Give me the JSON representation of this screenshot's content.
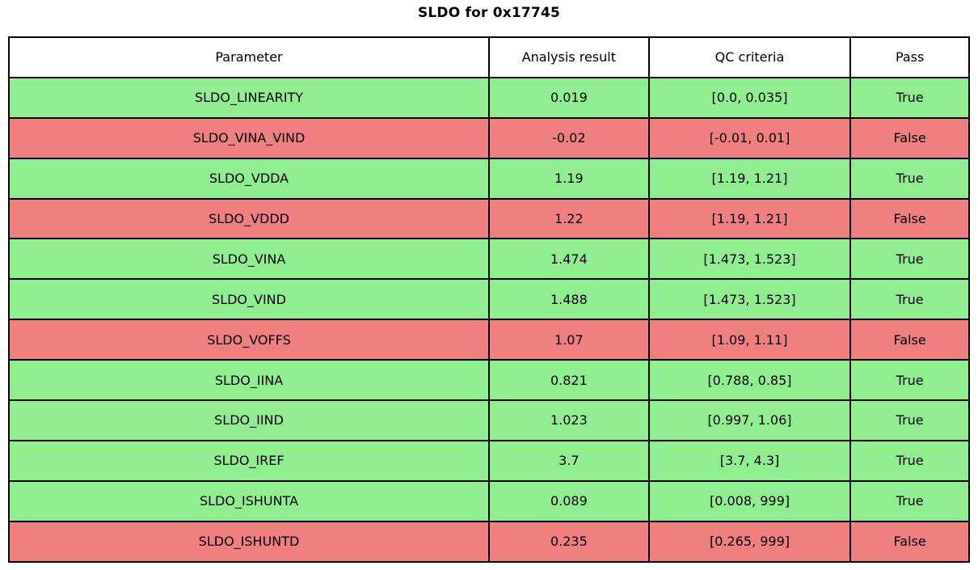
{
  "chart_data": {
    "type": "table",
    "title": "SLDO for 0x17745",
    "columns": [
      "Parameter",
      "Analysis result",
      "QC criteria",
      "Pass"
    ],
    "rows": [
      [
        "SLDO_LINEARITY",
        "0.019",
        "[0.0, 0.035]",
        "True"
      ],
      [
        "SLDO_VINA_VIND",
        "-0.02",
        "[-0.01, 0.01]",
        "False"
      ],
      [
        "SLDO_VDDA",
        "1.19",
        "[1.19, 1.21]",
        "True"
      ],
      [
        "SLDO_VDDD",
        "1.22",
        "[1.19, 1.21]",
        "False"
      ],
      [
        "SLDO_VINA",
        "1.474",
        "[1.473, 1.523]",
        "True"
      ],
      [
        "SLDO_VIND",
        "1.488",
        "[1.473, 1.523]",
        "True"
      ],
      [
        "SLDO_VOFFS",
        "1.07",
        "[1.09, 1.11]",
        "False"
      ],
      [
        "SLDO_IINA",
        "0.821",
        "[0.788, 0.85]",
        "True"
      ],
      [
        "SLDO_IIND",
        "1.023",
        "[0.997, 1.06]",
        "True"
      ],
      [
        "SLDO_IREF",
        "3.7",
        "[3.7, 4.3]",
        "True"
      ],
      [
        "SLDO_ISHUNTA",
        "0.089",
        "[0.008, 999]",
        "True"
      ],
      [
        "SLDO_ISHUNTD",
        "0.235",
        "[0.265, 999]",
        "False"
      ]
    ],
    "row_status": [
      "pass",
      "fail",
      "pass",
      "fail",
      "pass",
      "pass",
      "fail",
      "pass",
      "pass",
      "pass",
      "pass",
      "fail"
    ],
    "status_colors": {
      "pass": "#90ee90",
      "fail": "#f08080"
    },
    "layout": {
      "header_bg": "#ffffff",
      "border_color": "#000000",
      "legend_position": "none",
      "grid": "table-borders"
    }
  }
}
